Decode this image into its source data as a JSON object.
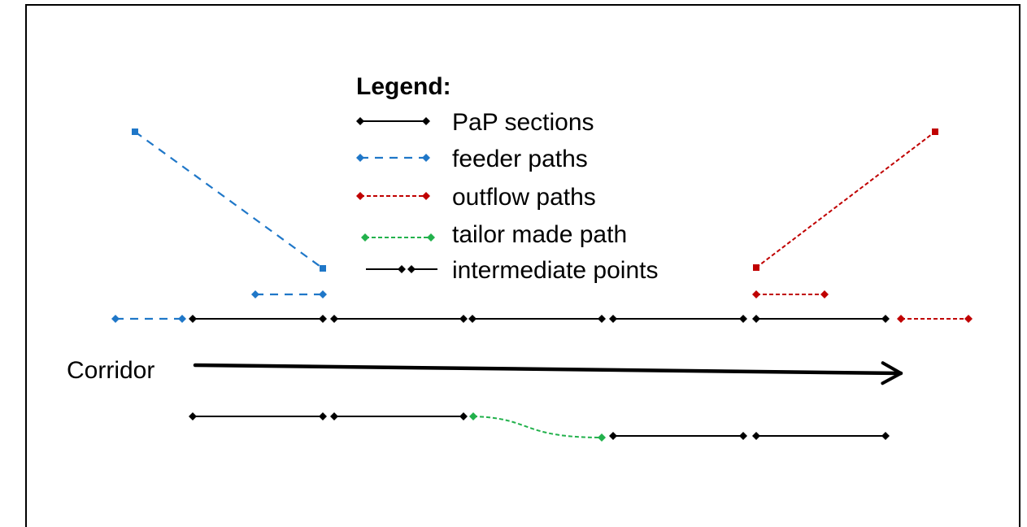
{
  "legend": {
    "title": "Legend:",
    "items": [
      {
        "key": "pap",
        "label": "PaP sections",
        "color": "#000000",
        "style": "solid"
      },
      {
        "key": "feeder",
        "label": "feeder paths",
        "color": "#1f77c8",
        "style": "dashed"
      },
      {
        "key": "outflow",
        "label": "outflow paths",
        "color": "#c00000",
        "style": "dotted"
      },
      {
        "key": "tailor",
        "label": "tailor made path",
        "color": "#22b14c",
        "style": "dotted"
      },
      {
        "key": "intermediate",
        "label": "intermediate points",
        "color": "#000000",
        "style": "solid"
      }
    ]
  },
  "corridor": {
    "label": "Corridor"
  },
  "colors": {
    "pap": "#000000",
    "feeder": "#1f77c8",
    "outflow": "#c00000",
    "tailor": "#22b14c",
    "border": "#000000",
    "background": "#ffffff"
  }
}
